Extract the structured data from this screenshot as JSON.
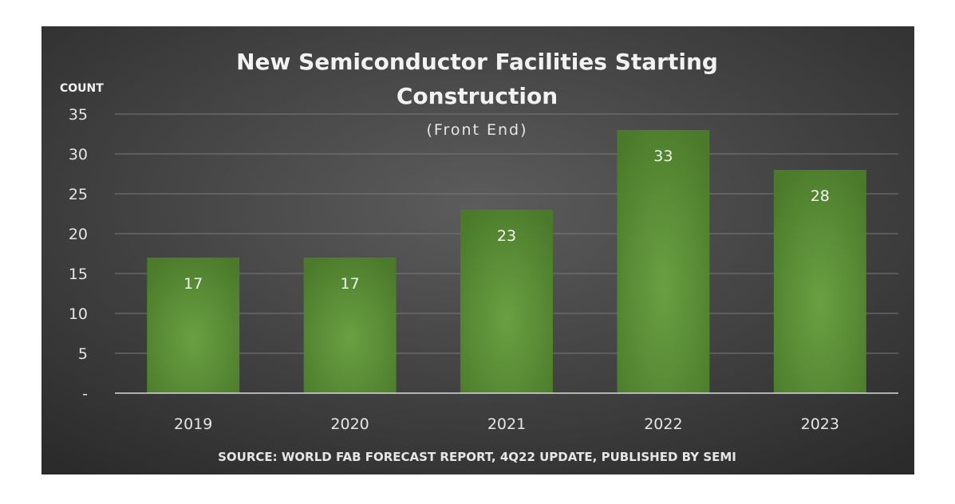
{
  "chart_data": {
    "type": "bar",
    "title_line1": "New Semiconductor Facilities Starting",
    "title_line2": "Construction",
    "subtitle": "(Front End)",
    "ylabel": "COUNT",
    "xlabel": "",
    "categories": [
      "2019",
      "2020",
      "2021",
      "2022",
      "2023"
    ],
    "values": [
      17,
      17,
      23,
      33,
      28
    ],
    "value_labels": [
      "17",
      "17",
      "23",
      "33",
      "28"
    ],
    "yticks": [
      0,
      5,
      10,
      15,
      20,
      25,
      30,
      35
    ],
    "ytick_labels": [
      "-",
      "5",
      "10",
      "15",
      "20",
      "25",
      "30",
      "35"
    ],
    "ylim": [
      0,
      35
    ],
    "grid": true,
    "legend": "none",
    "source": "SOURCE: WORLD FAB FORECAST REPORT, 4Q22 UPDATE, PUBLISHED BY SEMI",
    "colors": {
      "background_center": "#5c5c5c",
      "background_edge": "#2b2b2b",
      "bar_center": "#6aa043",
      "bar_edge": "#4a7a2a",
      "gridline": "#7a7a7a",
      "axis": "#d9d9d9"
    }
  }
}
